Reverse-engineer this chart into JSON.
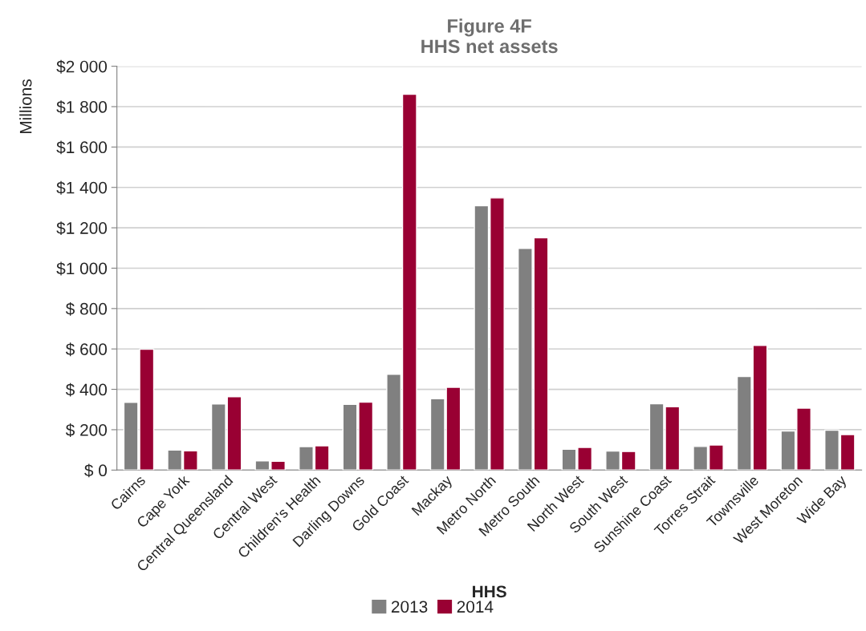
{
  "chart_data": {
    "type": "bar",
    "title": "Figure 4F\nHHS net assets",
    "xlabel": "HHS",
    "ylabel": "Millions",
    "categories": [
      "Cairns",
      "Cape York",
      "Central Queensland",
      "Central West",
      "Children's Health",
      "Darling Downs",
      "Gold Coast",
      "Mackay",
      "Metro North",
      "Metro South",
      "North West",
      "South West",
      "Sunshine Coast",
      "Torres Strait",
      "Townsville",
      "West Moreton",
      "Wide Bay"
    ],
    "series": [
      {
        "name": "2013",
        "color": "#808080",
        "values": [
          336,
          99,
          328,
          46,
          116,
          326,
          475,
          353,
          1309,
          1098,
          103,
          94,
          329,
          117,
          464,
          194,
          198
        ]
      },
      {
        "name": "2014",
        "color": "#990033",
        "values": [
          599,
          95,
          363,
          44,
          120,
          337,
          1861,
          410,
          1348,
          1151,
          112,
          92,
          314,
          124,
          617,
          307,
          176
        ]
      }
    ],
    "ylim": [
      0,
      2000
    ],
    "yticks": [
      {
        "value": 0,
        "label": "$ 0"
      },
      {
        "value": 200,
        "label": "$ 200"
      },
      {
        "value": 400,
        "label": "$ 400"
      },
      {
        "value": 600,
        "label": "$ 600"
      },
      {
        "value": 800,
        "label": "$ 800"
      },
      {
        "value": 1000,
        "label": "$1 000"
      },
      {
        "value": 1200,
        "label": "$1 200"
      },
      {
        "value": 1400,
        "label": "$1 400"
      },
      {
        "value": 1600,
        "label": "$1 600"
      },
      {
        "value": 1800,
        "label": "$1 800"
      },
      {
        "value": 2000,
        "label": "$2 000"
      }
    ],
    "grid": "y",
    "legend": "bottom"
  }
}
